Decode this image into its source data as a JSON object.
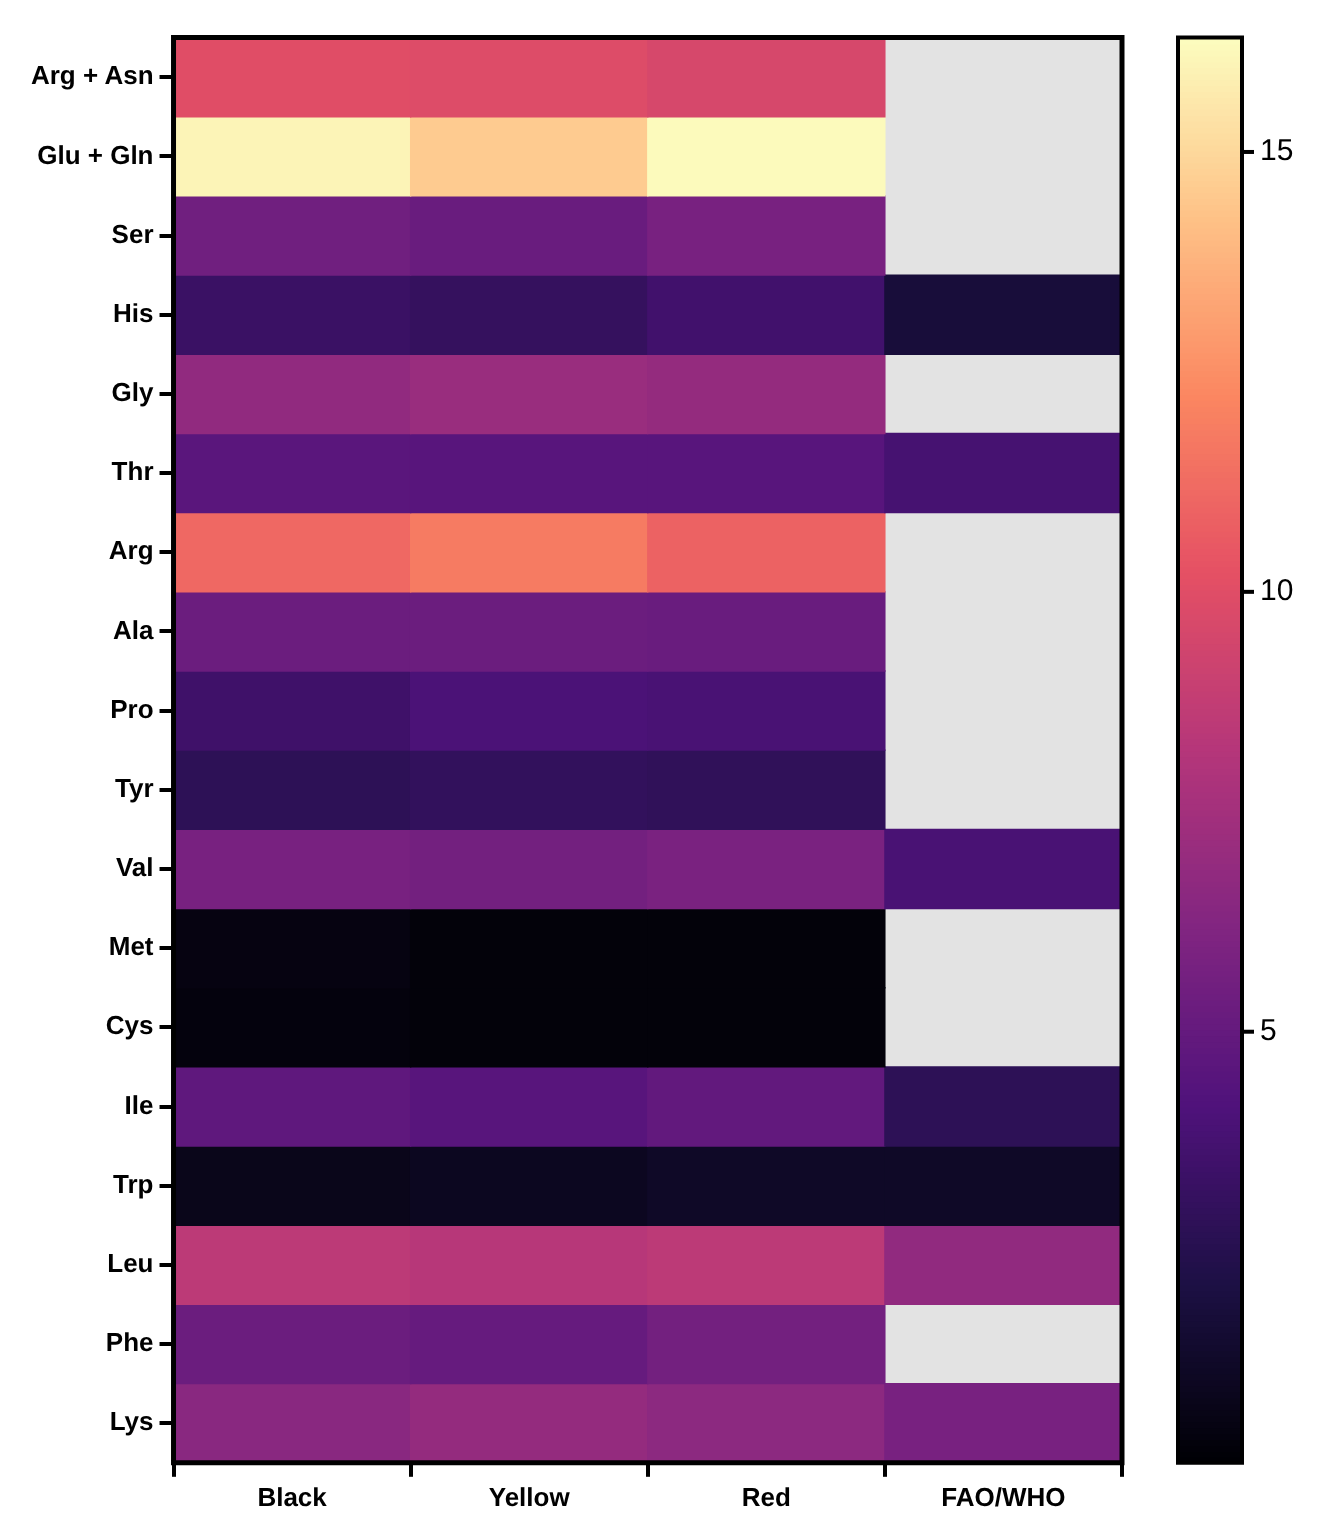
{
  "chart_data": {
    "type": "heatmap",
    "categories": [
      "Black",
      "Yellow",
      "Red",
      "FAO/WHO"
    ],
    "y_categories": [
      "Arg + Asn",
      "Glu + Gln",
      "Ser",
      "His",
      "Gly",
      "Thr",
      "Arg",
      "Ala",
      "Pro",
      "Tyr",
      "Val",
      "Met",
      "Cys",
      "Ile",
      "Trp",
      "Leu",
      "Phe",
      "Lys"
    ],
    "cells": [
      [
        10.0,
        9.9,
        9.6,
        null
      ],
      [
        16.0,
        14.6,
        16.2,
        null
      ],
      [
        5.5,
        5.2,
        5.8,
        null
      ],
      [
        3.3,
        3.1,
        3.6,
        1.8
      ],
      [
        6.8,
        7.1,
        6.9,
        null
      ],
      [
        4.6,
        4.5,
        4.5,
        3.8
      ],
      [
        11.1,
        11.8,
        10.9,
        null
      ],
      [
        5.3,
        5.3,
        5.2,
        null
      ],
      [
        3.5,
        4.0,
        3.9,
        null
      ],
      [
        2.8,
        3.0,
        2.9,
        null
      ],
      [
        5.8,
        5.6,
        5.9,
        3.9
      ],
      [
        0.5,
        0.3,
        0.3,
        null
      ],
      [
        0.4,
        0.3,
        0.3,
        null
      ],
      [
        4.8,
        4.5,
        4.9,
        2.8
      ],
      [
        0.8,
        1.0,
        1.2,
        1.2
      ],
      [
        8.5,
        8.3,
        8.5,
        6.8
      ],
      [
        5.3,
        5.1,
        5.6,
        null
      ],
      [
        6.5,
        6.9,
        6.6,
        5.8
      ]
    ],
    "clim": [
      0.1,
      16.3
    ],
    "cticks": [
      5,
      10,
      15
    ]
  }
}
